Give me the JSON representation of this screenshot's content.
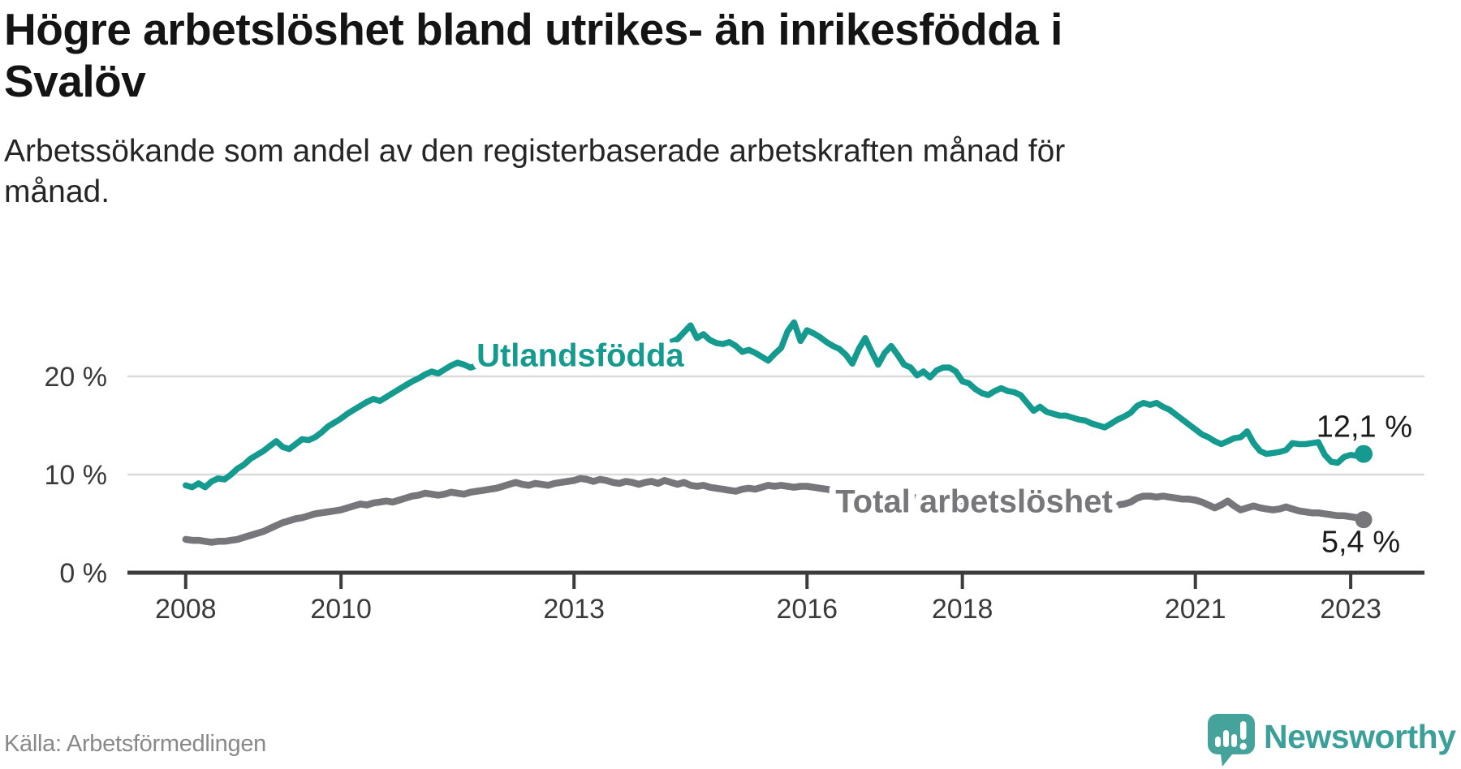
{
  "header": {
    "title_lines": [
      "Högre arbetslöshet bland utrikes- än inrikesfödda i",
      "Svalöv"
    ],
    "subtitle_lines": [
      "Arbetssökande som andel av den registerbaserade arbetskraften månad för",
      "månad."
    ]
  },
  "footer": {
    "source": "Källa: Arbetsförmedlingen",
    "brand": "Newsworthy"
  },
  "colors": {
    "teal": "#149a8e",
    "gray": "#77777b",
    "grid": "#dadada",
    "axis": "#3c3c3c",
    "tick_text": "#3a3a3a",
    "value_text": "#1c1c1c",
    "halo": "#ffffff",
    "logo_bubble": "#45a39c",
    "brand_teal": "#3aa099"
  },
  "chart_data": {
    "type": "line",
    "title": "Högre arbetslöshet bland utrikes- än inrikesfödda i Svalöv",
    "subtitle": "Arbetssökande som andel av den registerbaserade arbetskraften månad för månad.",
    "xlabel": "",
    "ylabel": "",
    "xlim": [
      2007.25,
      2023.95
    ],
    "ylim": [
      0,
      31
    ],
    "grid": "horizontal",
    "legend_position": "inline-labels",
    "y_ticks": [
      {
        "value": 0,
        "label": "0 %"
      },
      {
        "value": 10,
        "label": "10 %"
      },
      {
        "value": 20,
        "label": "20 %"
      }
    ],
    "x_ticks": [
      {
        "value": 2008,
        "label": "2008"
      },
      {
        "value": 2010,
        "label": "2010"
      },
      {
        "value": 2013,
        "label": "2013"
      },
      {
        "value": 2016,
        "label": "2016"
      },
      {
        "value": 2018,
        "label": "2018"
      },
      {
        "value": 2021,
        "label": "2021"
      },
      {
        "value": 2023,
        "label": "2023"
      }
    ],
    "series": [
      {
        "name": "Utlandsfödda",
        "color": "#149a8e",
        "stroke_width": 7.5,
        "start_year": 2008,
        "monthly_values": [
          8.9,
          8.7,
          9.1,
          8.7,
          9.3,
          9.6,
          9.5,
          10.0,
          10.6,
          11.0,
          11.6,
          12.0,
          12.4,
          12.9,
          13.4,
          12.8,
          12.6,
          13.1,
          13.6,
          13.5,
          13.8,
          14.3,
          14.9,
          15.3,
          15.7,
          16.2,
          16.6,
          17.0,
          17.4,
          17.7,
          17.5,
          17.9,
          18.3,
          18.7,
          19.1,
          19.5,
          19.8,
          20.2,
          20.5,
          20.3,
          20.7,
          21.1,
          21.4,
          21.2,
          20.9,
          21.1,
          21.5,
          21.7,
          21.9,
          22.1,
          21.8,
          21.6,
          21.4,
          21.7,
          21.9,
          22.1,
          22.0,
          21.8,
          22.0,
          22.2,
          22.3,
          22.5,
          22.4,
          22.2,
          22.5,
          22.7,
          22.6,
          22.4,
          22.3,
          22.5,
          22.7,
          22.9,
          23.1,
          23.3,
          23.2,
          23.5,
          23.8,
          24.5,
          25.2,
          23.9,
          24.3,
          23.7,
          23.4,
          23.3,
          23.5,
          23.1,
          22.5,
          22.7,
          22.4,
          22.0,
          21.6,
          22.3,
          22.9,
          24.6,
          25.5,
          23.6,
          24.7,
          24.4,
          24.0,
          23.5,
          23.1,
          22.8,
          22.2,
          21.3,
          22.8,
          23.9,
          22.5,
          21.2,
          22.4,
          23.1,
          22.2,
          21.2,
          20.9,
          20.1,
          20.5,
          19.9,
          20.6,
          20.9,
          20.9,
          20.5,
          19.5,
          19.3,
          18.7,
          18.3,
          18.1,
          18.5,
          18.8,
          18.5,
          18.4,
          18.1,
          17.3,
          16.5,
          16.9,
          16.4,
          16.2,
          16.0,
          16.0,
          15.8,
          15.6,
          15.5,
          15.2,
          15.0,
          14.8,
          15.2,
          15.6,
          15.9,
          16.3,
          17.0,
          17.3,
          17.1,
          17.3,
          16.9,
          16.6,
          16.1,
          15.6,
          15.1,
          14.6,
          14.1,
          13.8,
          13.4,
          13.1,
          13.4,
          13.7,
          13.8,
          14.4,
          13.2,
          12.4,
          12.1,
          12.2,
          12.3,
          12.5,
          13.2,
          13.1,
          13.1,
          13.2,
          13.3,
          12.0,
          11.3,
          11.2,
          11.8,
          12.0,
          11.9,
          12.1
        ],
        "label": "Utlandsfödda",
        "label_pos": {
          "year": 2013.08,
          "value": 22.2
        },
        "end_dot_radius": 11,
        "end_label": "12,1 %",
        "end_label_dx": 60,
        "end_label_dy": -21
      },
      {
        "name": "Total arbetslöshet",
        "color": "#77777b",
        "stroke_width": 8.5,
        "start_year": 2008,
        "monthly_values": [
          3.4,
          3.3,
          3.3,
          3.2,
          3.1,
          3.2,
          3.2,
          3.3,
          3.4,
          3.6,
          3.8,
          4.0,
          4.2,
          4.5,
          4.8,
          5.1,
          5.3,
          5.5,
          5.6,
          5.8,
          6.0,
          6.1,
          6.2,
          6.3,
          6.4,
          6.6,
          6.8,
          7.0,
          6.9,
          7.1,
          7.2,
          7.3,
          7.2,
          7.4,
          7.6,
          7.8,
          7.9,
          8.1,
          8.0,
          7.9,
          8.0,
          8.2,
          8.1,
          8.0,
          8.2,
          8.3,
          8.4,
          8.5,
          8.6,
          8.8,
          9.0,
          9.2,
          9.0,
          8.9,
          9.1,
          9.0,
          8.9,
          9.1,
          9.2,
          9.3,
          9.4,
          9.6,
          9.5,
          9.3,
          9.5,
          9.4,
          9.2,
          9.1,
          9.3,
          9.2,
          9.0,
          9.2,
          9.3,
          9.1,
          9.4,
          9.2,
          9.0,
          9.2,
          8.9,
          8.8,
          8.9,
          8.7,
          8.6,
          8.5,
          8.4,
          8.3,
          8.5,
          8.6,
          8.5,
          8.7,
          8.9,
          8.8,
          8.9,
          8.8,
          8.7,
          8.8,
          8.8,
          8.7,
          8.6,
          8.5,
          8.4,
          8.3,
          8.3,
          8.2,
          8.2,
          8.1,
          8.0,
          8.0,
          7.9,
          7.9,
          7.8,
          7.7,
          7.7,
          7.6,
          7.6,
          7.5,
          7.5,
          7.4,
          7.3,
          7.3,
          7.2,
          7.2,
          7.1,
          7.0,
          7.0,
          6.9,
          6.9,
          6.8,
          6.8,
          6.7,
          6.7,
          6.6,
          6.6,
          6.5,
          6.5,
          6.5,
          6.4,
          6.4,
          6.5,
          6.5,
          6.6,
          6.6,
          6.7,
          6.8,
          6.9,
          7.0,
          7.2,
          7.6,
          7.8,
          7.8,
          7.7,
          7.8,
          7.7,
          7.6,
          7.5,
          7.5,
          7.4,
          7.2,
          6.9,
          6.6,
          6.9,
          7.3,
          6.8,
          6.4,
          6.6,
          6.8,
          6.6,
          6.5,
          6.4,
          6.5,
          6.7,
          6.5,
          6.3,
          6.2,
          6.1,
          6.1,
          6.0,
          5.9,
          5.8,
          5.8,
          5.7,
          5.6,
          5.4
        ],
        "label": "Total arbetslöshet",
        "label_pos": {
          "year": 2018.15,
          "value": 7.3
        },
        "end_dot_radius": 10.5,
        "end_label": "5,4 %",
        "end_label_dx": 45,
        "end_label_dy": 40
      }
    ]
  }
}
